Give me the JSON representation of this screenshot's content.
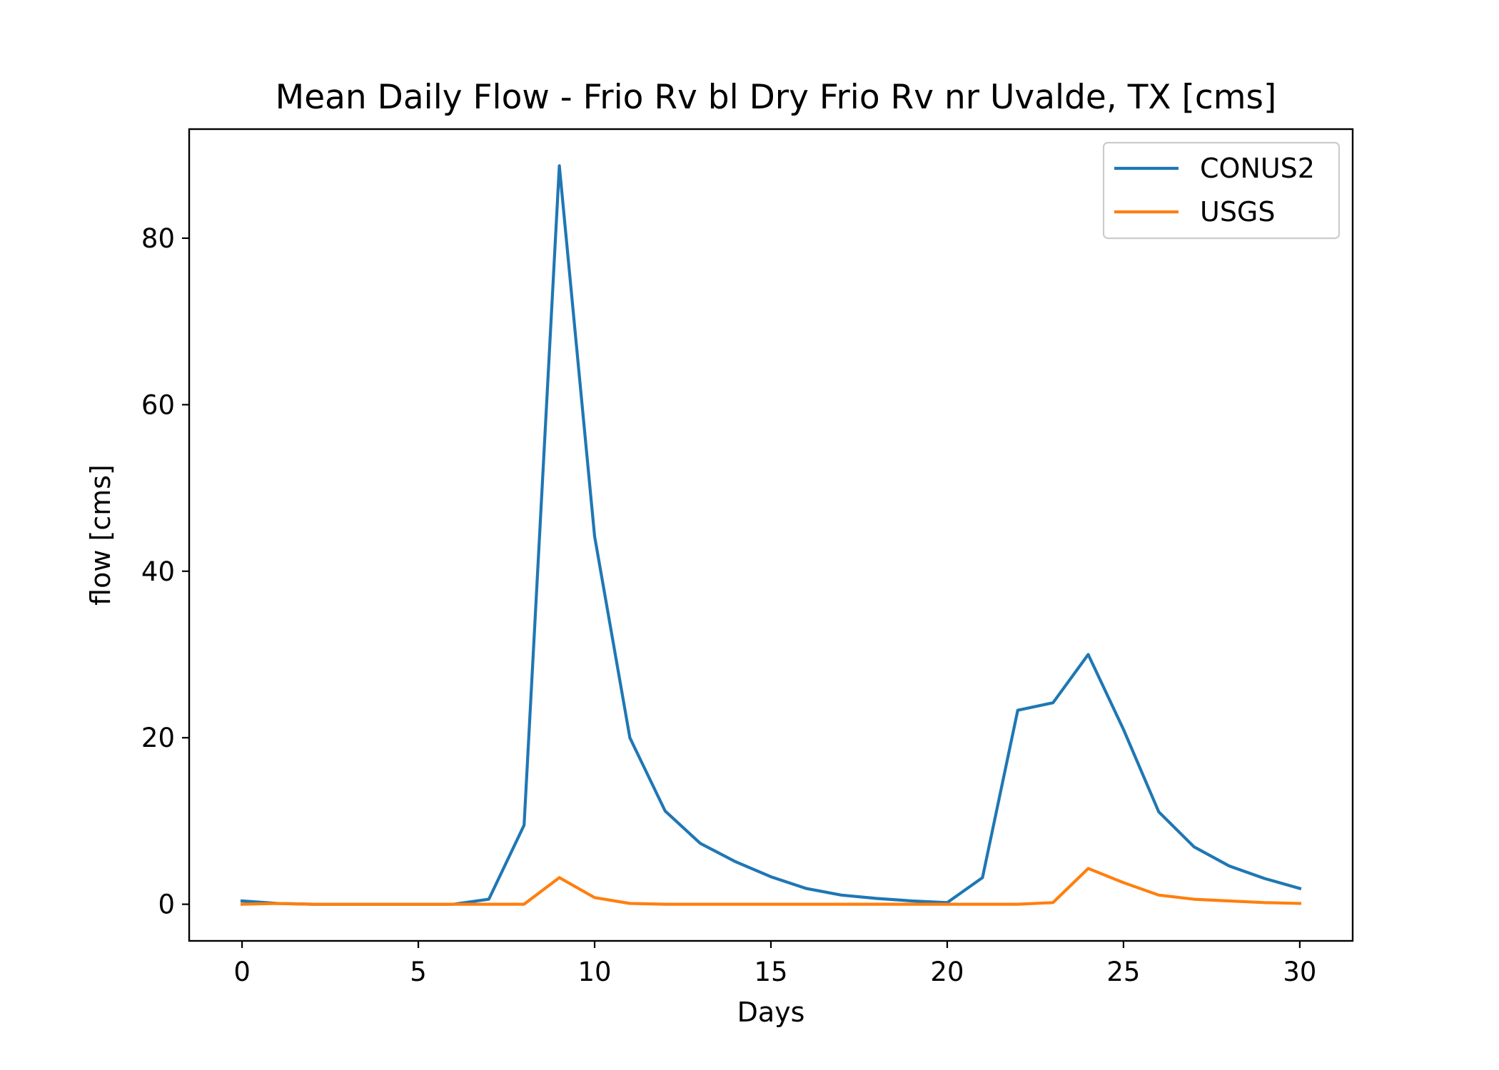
{
  "chart_data": {
    "type": "line",
    "title": "Mean Daily Flow - Frio Rv bl Dry Frio Rv nr Uvalde, TX [cms]",
    "xlabel": "Days",
    "ylabel": "flow [cms]",
    "xlim": [
      -1.5,
      31.5
    ],
    "ylim": [
      -4.4,
      93.1
    ],
    "xticks": [
      0,
      5,
      10,
      15,
      20,
      25,
      30
    ],
    "yticks": [
      0,
      20,
      40,
      60,
      80
    ],
    "grid": false,
    "legend_position": "upper right",
    "x": [
      0,
      1,
      2,
      3,
      4,
      5,
      6,
      7,
      8,
      9,
      10,
      11,
      12,
      13,
      14,
      15,
      16,
      17,
      18,
      19,
      20,
      21,
      22,
      23,
      24,
      25,
      26,
      27,
      28,
      29,
      30
    ],
    "series": [
      {
        "name": "CONUS2",
        "color": "#1f77b4",
        "values": [
          0.4,
          0.1,
          0.0,
          0.0,
          0.0,
          0.0,
          0.0,
          0.6,
          9.5,
          88.7,
          44.2,
          20.0,
          11.2,
          7.3,
          5.1,
          3.3,
          1.9,
          1.1,
          0.7,
          0.4,
          0.2,
          3.2,
          23.3,
          24.2,
          30.0,
          21.0,
          11.1,
          6.9,
          4.6,
          3.1,
          1.9
        ]
      },
      {
        "name": "USGS",
        "color": "#ff7f0e",
        "values": [
          0.0,
          0.1,
          0.0,
          0.0,
          0.0,
          0.0,
          0.0,
          0.0,
          0.0,
          3.2,
          0.8,
          0.1,
          0.0,
          0.0,
          0.0,
          0.0,
          0.0,
          0.0,
          0.0,
          0.0,
          0.0,
          0.0,
          0.0,
          0.2,
          4.3,
          2.6,
          1.1,
          0.6,
          0.4,
          0.2,
          0.1
        ]
      }
    ]
  }
}
